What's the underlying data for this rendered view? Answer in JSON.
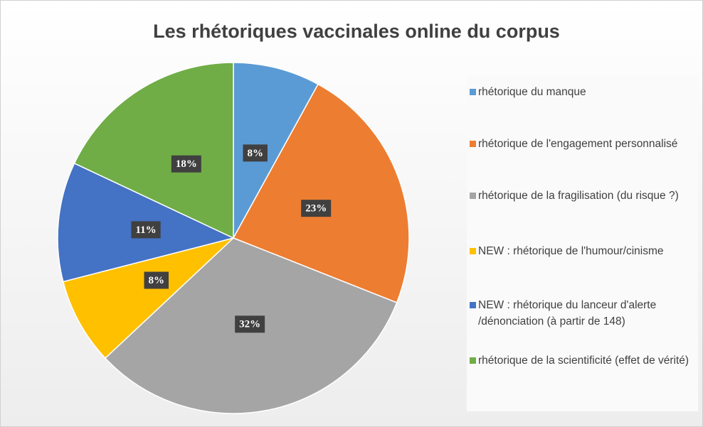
{
  "chart_data": {
    "type": "pie",
    "title": "Les rhétoriques vaccinales online du corpus",
    "categories": [
      "rhétorique du manque",
      "rhétorique de l'engagement personnalisé",
      "rhétorique de la fragilisation (du risque ?)",
      "NEW : rhétorique de l'humour/cinisme",
      "NEW : rhétorique du lanceur d'alerte /dénonciation (à partir de 148)",
      "rhétorique de la scientificité (effet de vérité)"
    ],
    "values": [
      8,
      23,
      32,
      8,
      11,
      18
    ],
    "value_labels": [
      "8%",
      "23%",
      "32%",
      "8%",
      "11%",
      "18%"
    ],
    "colors": [
      "#5b9bd5",
      "#ed7d31",
      "#a5a5a5",
      "#ffc000",
      "#4472c4",
      "#70ad47"
    ],
    "legend": "right"
  }
}
